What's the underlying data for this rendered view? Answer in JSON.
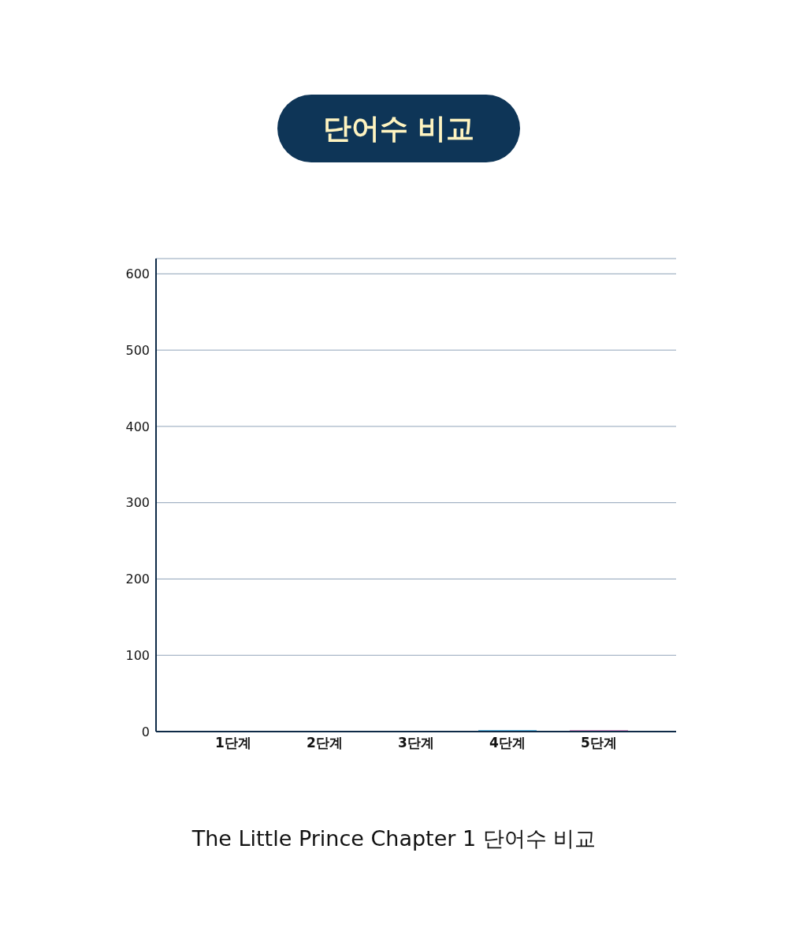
{
  "chart_data": {
    "type": "bar",
    "title": "단어수 비교",
    "categories": [
      "1단계",
      "2단계",
      "3단계",
      "4단계",
      "5단계"
    ],
    "values": [
      0,
      0,
      1,
      2,
      2
    ],
    "colors": [
      "#2b4a7a",
      "#2b4a7a",
      "#e07a4a",
      "#5ab4e0",
      "#d08ac0"
    ],
    "ylim": [
      0,
      620
    ],
    "yticks": [
      0,
      100,
      200,
      300,
      400,
      500,
      600
    ],
    "grid": "y",
    "annotations": [
      "The Little Prince Chapter 1 단어수 비교"
    ]
  }
}
